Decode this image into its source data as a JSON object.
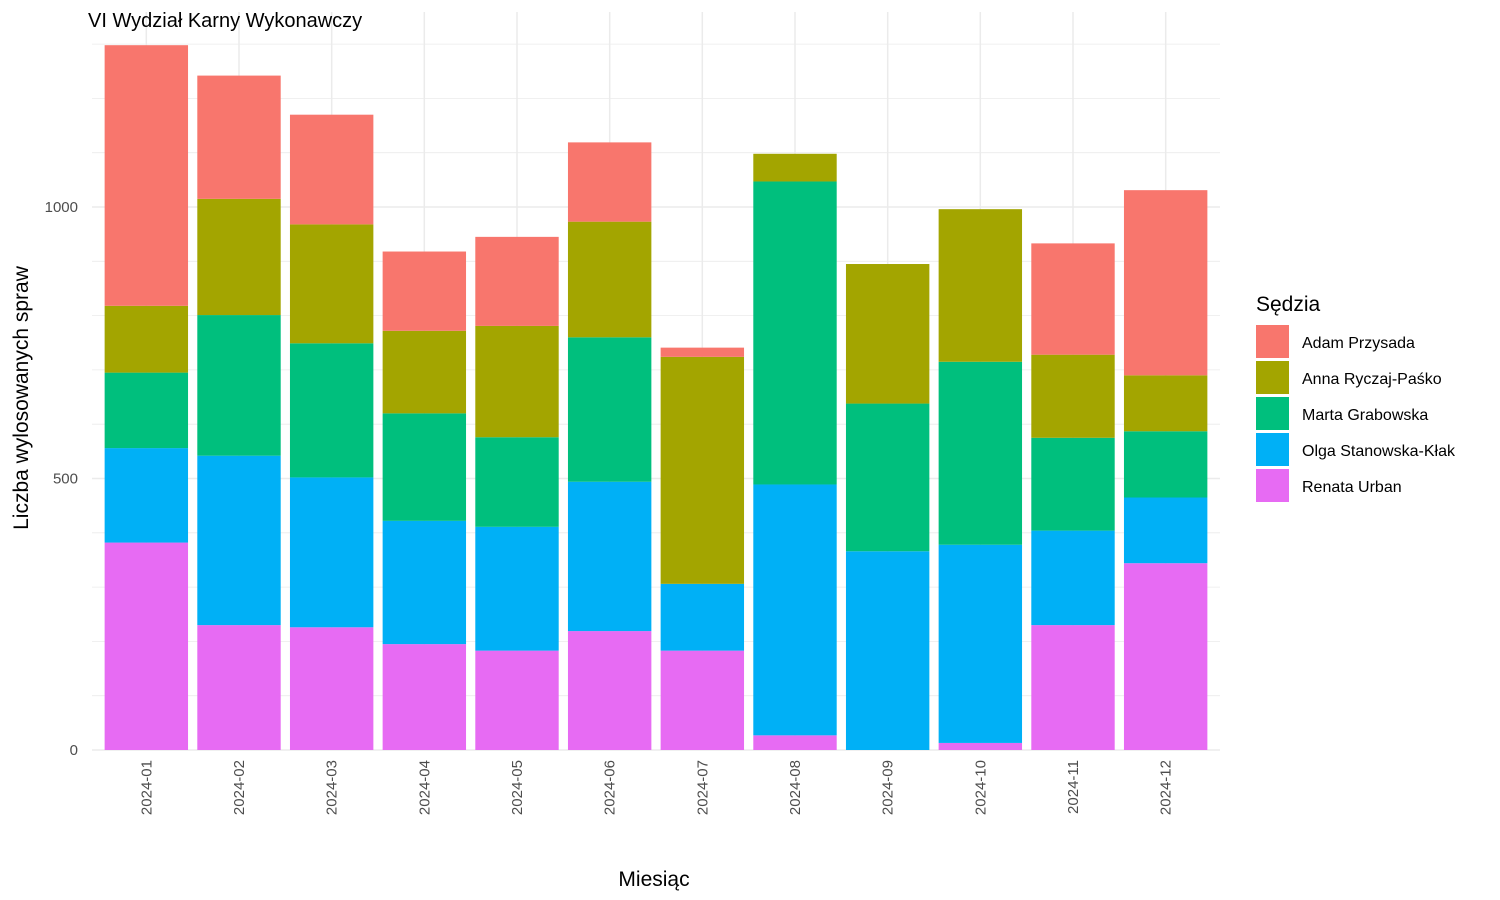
{
  "chart_data": {
    "type": "bar",
    "stacked": true,
    "title": "VI Wydział Karny Wykonawczy",
    "xlabel": "Miesiąc",
    "ylabel": "Liczba wylosowanych spraw",
    "ylim": [
      0,
      1300
    ],
    "yticks": [
      0,
      500,
      1000
    ],
    "grid": true,
    "legend": {
      "title": "Sędzia",
      "position": "right"
    },
    "categories": [
      "2024-01",
      "2024-02",
      "2024-03",
      "2024-04",
      "2024-05",
      "2024-06",
      "2024-07",
      "2024-08",
      "2024-09",
      "2024-10",
      "2024-11",
      "2024-12"
    ],
    "series": [
      {
        "name": "Renata Urban",
        "color": "#E76BF3",
        "values": [
          382,
          230,
          226,
          195,
          183,
          219,
          183,
          27,
          0,
          13,
          230,
          344
        ]
      },
      {
        "name": "Olga Stanowska-Kłak",
        "color": "#00B0F6",
        "values": [
          174,
          312,
          276,
          227,
          228,
          275,
          123,
          462,
          366,
          365,
          174,
          121
        ]
      },
      {
        "name": "Marta Grabowska",
        "color": "#00BF7D",
        "values": [
          139,
          259,
          247,
          198,
          165,
          266,
          0,
          558,
          272,
          337,
          171,
          122
        ]
      },
      {
        "name": "Anna Ryczaj-Paśko",
        "color": "#A3A500",
        "values": [
          123,
          214,
          219,
          152,
          205,
          213,
          418,
          51,
          257,
          281,
          153,
          103
        ]
      },
      {
        "name": "Adam Przysada",
        "color": "#F8766D",
        "values": [
          480,
          227,
          202,
          146,
          164,
          146,
          17,
          0,
          0,
          0,
          205,
          341
        ]
      }
    ]
  }
}
